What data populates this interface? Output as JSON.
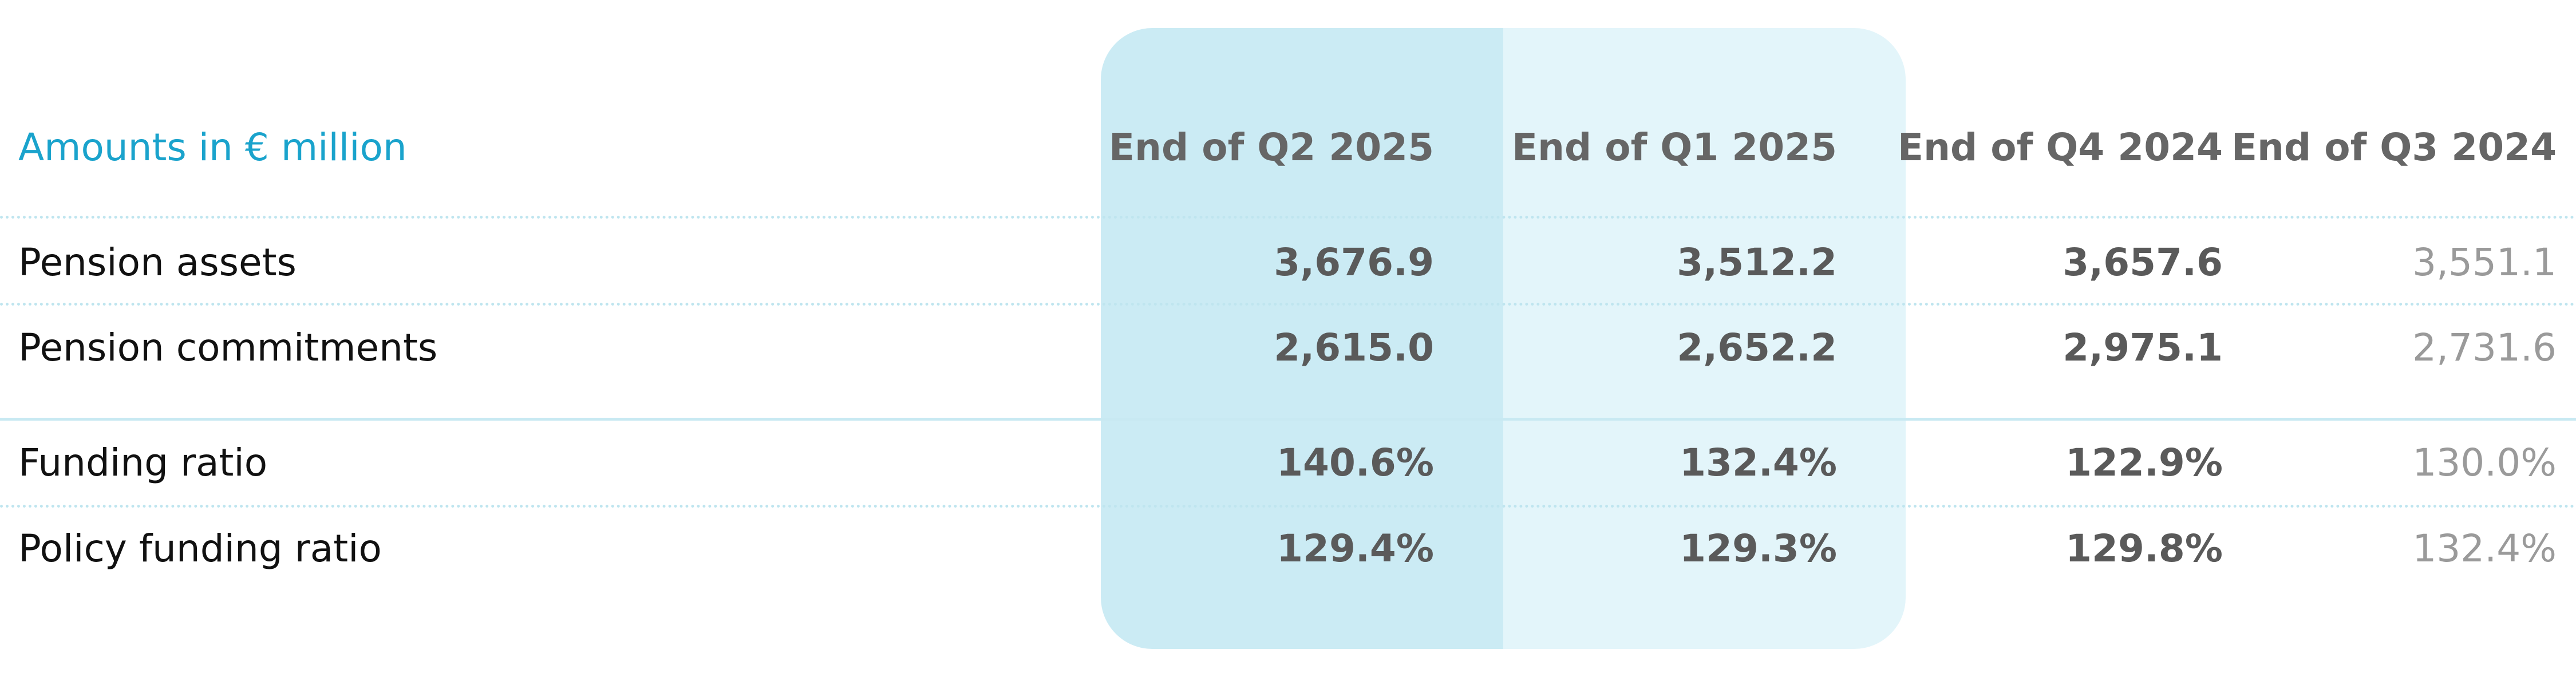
{
  "table": {
    "units": "Amounts in € million",
    "columns": [
      "End of Q2 2025",
      "End of Q1 2025",
      "End of Q4 2024",
      "End of Q3 2024"
    ],
    "rows": [
      {
        "label": "Pension assets",
        "values": [
          "3,676.9",
          "3,512.2",
          "3,657.6",
          "3,551.1"
        ]
      },
      {
        "label": "Pension commitments",
        "values": [
          "2,615.0",
          "2,652.2",
          "2,975.1",
          "2,731.6"
        ]
      },
      {
        "label": "Funding ratio",
        "values": [
          "140.6%",
          "132.4%",
          "122.9%",
          "130.0%"
        ]
      },
      {
        "label": "Policy funding ratio",
        "values": [
          "129.4%",
          "129.3%",
          "129.8%",
          "132.4%"
        ]
      }
    ]
  }
}
